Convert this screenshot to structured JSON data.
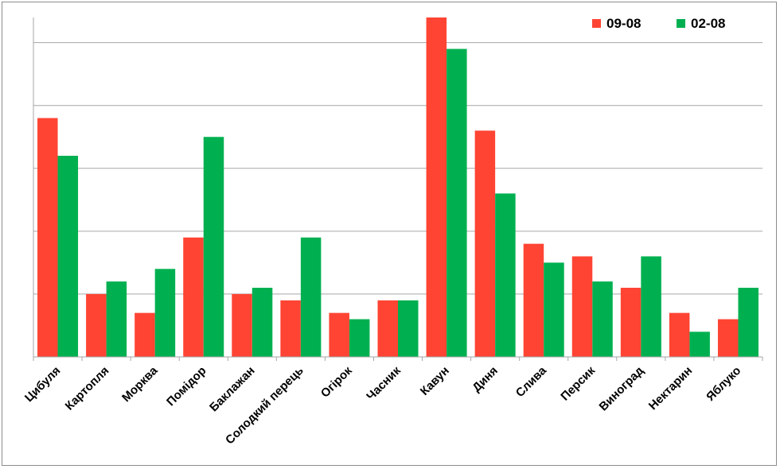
{
  "chart_data": {
    "type": "bar",
    "title": "",
    "xlabel": "",
    "ylabel": "",
    "ylim": [
      0,
      5.4
    ],
    "y_axis_labels_shown": false,
    "grid": true,
    "legend_position": "top-right",
    "categories": [
      "Цибуля",
      "Картопля",
      "Морква",
      "Помідор",
      "Баклажан",
      "Солодкий перець",
      "Огірок",
      "Часник",
      "Кавун",
      "Диня",
      "Слива",
      "Персик",
      "Виноград",
      "Нектарин",
      "Яблуко"
    ],
    "series": [
      {
        "name": "09-08",
        "color": "#ff4433",
        "values": [
          3.8,
          1.0,
          0.7,
          1.9,
          1.0,
          0.9,
          0.7,
          0.9,
          5.4,
          3.6,
          1.8,
          1.6,
          1.1,
          0.7,
          0.6
        ]
      },
      {
        "name": "02-08",
        "color": "#00b050",
        "values": [
          3.2,
          1.2,
          1.4,
          3.5,
          1.1,
          1.9,
          0.6,
          0.9,
          4.9,
          2.6,
          1.5,
          1.2,
          1.6,
          0.4,
          1.1
        ]
      }
    ]
  }
}
